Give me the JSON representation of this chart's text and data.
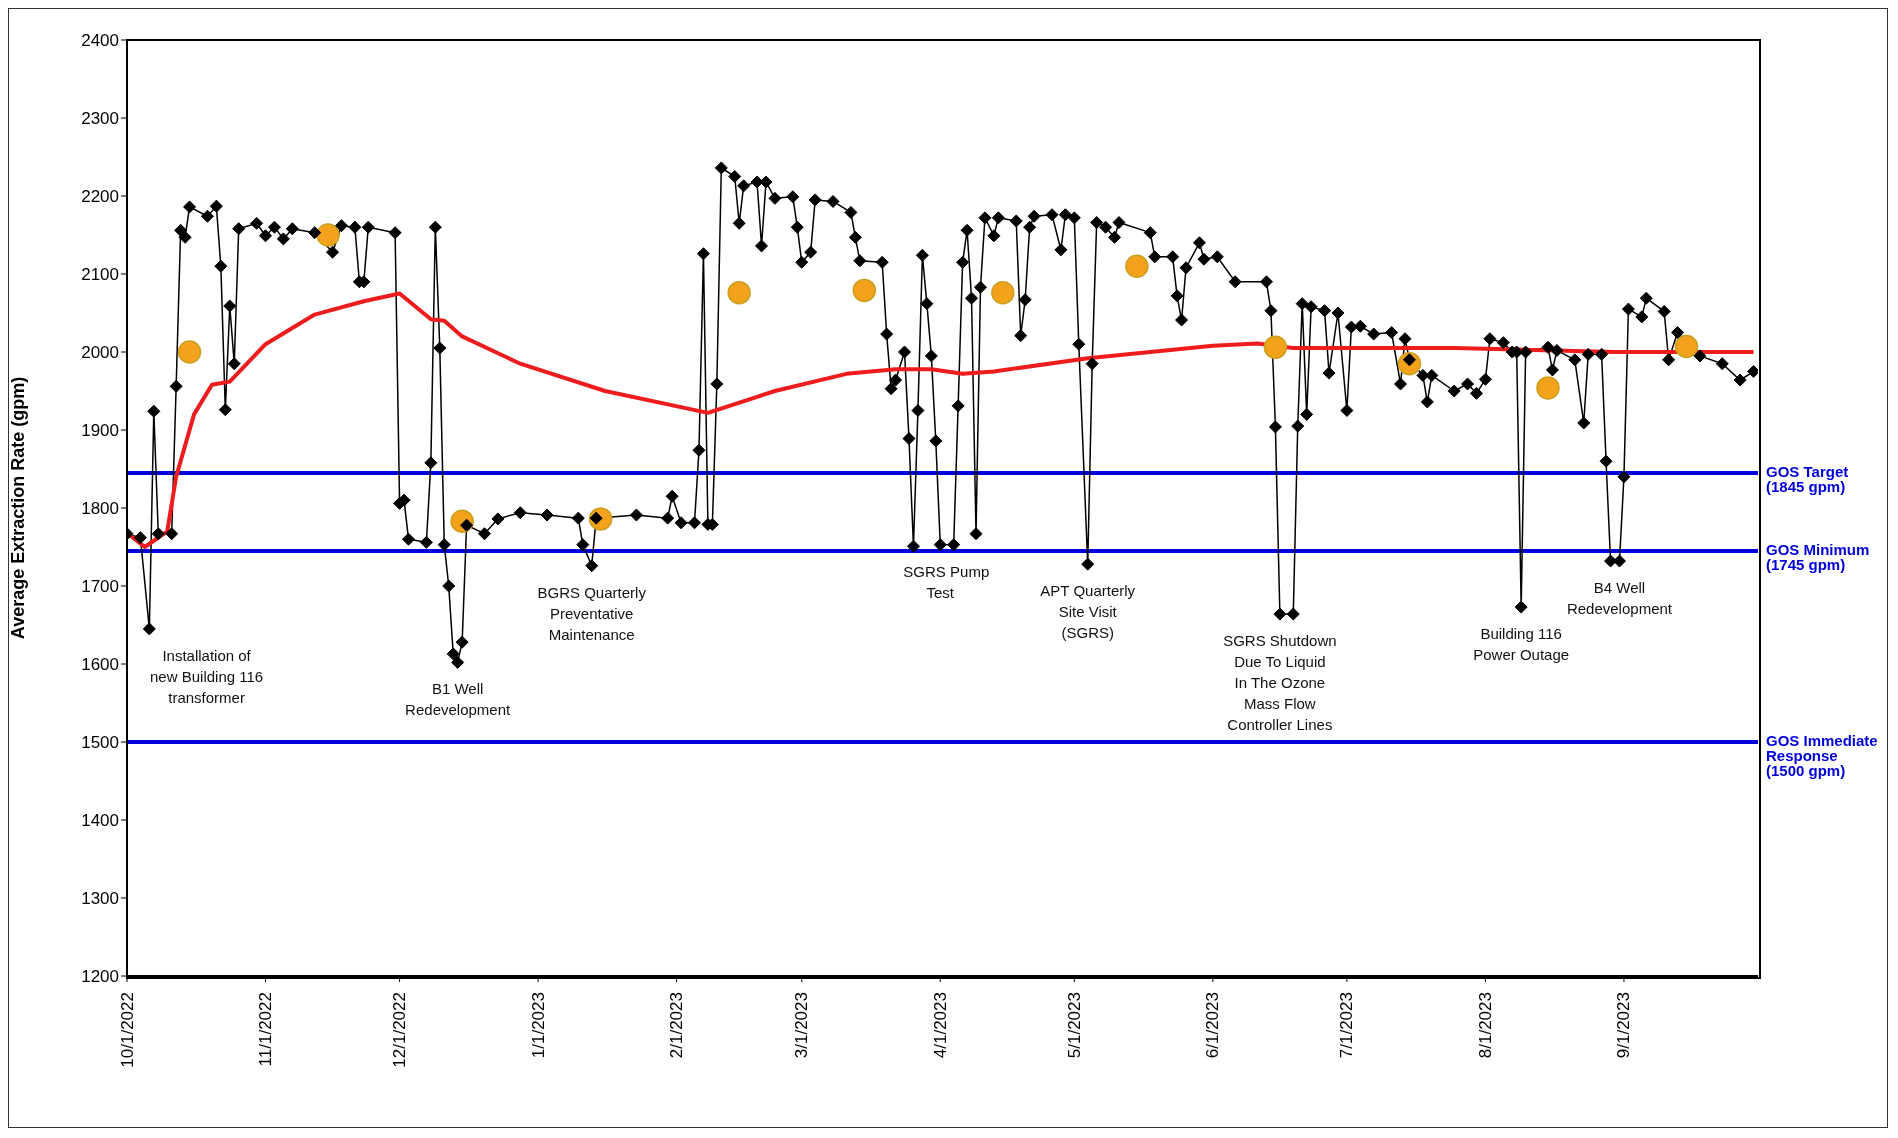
{
  "chart_data": {
    "type": "line",
    "ylabel": "Average Extraction Rate (gpm)",
    "xlim": [
      "2022-10-01",
      "2023-10-01"
    ],
    "xticks": [
      {
        "value": "2022-10-01",
        "label": "10/1/2022"
      },
      {
        "value": "2022-11-01",
        "label": "11/1/2022"
      },
      {
        "value": "2022-12-01",
        "label": "12/1/2022"
      },
      {
        "value": "2023-01-01",
        "label": "1/1/2023"
      },
      {
        "value": "2023-02-01",
        "label": "2/1/2023"
      },
      {
        "value": "2023-03-01",
        "label": "3/1/2023"
      },
      {
        "value": "2023-04-01",
        "label": "4/1/2023"
      },
      {
        "value": "2023-05-01",
        "label": "5/1/2023"
      },
      {
        "value": "2023-06-01",
        "label": "6/1/2023"
      },
      {
        "value": "2023-07-01",
        "label": "7/1/2023"
      },
      {
        "value": "2023-08-01",
        "label": "8/1/2023"
      },
      {
        "value": "2023-09-01",
        "label": "9/1/2023"
      }
    ],
    "ylim": [
      1200,
      2400
    ],
    "yticks": [
      1200,
      1300,
      1400,
      1500,
      1600,
      1700,
      1800,
      1900,
      2000,
      2100,
      2200,
      2300,
      2400
    ],
    "series": [
      {
        "type": "line",
        "color": "#000000",
        "marker": "diamond",
        "x": [
          "2022-10-01",
          "2022-10-04",
          "2022-10-06",
          "2022-10-07",
          "2022-10-08",
          "2022-10-11",
          "2022-10-12",
          "2022-10-13",
          "2022-10-14",
          "2022-10-15",
          "2022-10-19",
          "2022-10-21",
          "2022-10-22",
          "2022-10-23",
          "2022-10-24",
          "2022-10-25",
          "2022-10-26",
          "2022-10-30",
          "2022-11-01",
          "2022-11-03",
          "2022-11-05",
          "2022-11-07",
          "2022-11-12",
          "2022-11-16",
          "2022-11-18",
          "2022-11-21",
          "2022-11-22",
          "2022-11-23",
          "2022-11-24",
          "2022-11-30",
          "2022-12-01",
          "2022-12-02",
          "2022-12-03",
          "2022-12-07",
          "2022-12-08",
          "2022-12-09",
          "2022-12-10",
          "2022-12-11",
          "2022-12-12",
          "2022-12-13",
          "2022-12-14",
          "2022-12-15",
          "2022-12-16",
          "2022-12-20",
          "2022-12-23",
          "2022-12-28",
          "2023-01-03",
          "2023-01-10",
          "2023-01-11",
          "2023-01-13",
          "2023-01-14",
          "2023-01-23",
          "2023-01-30",
          "2023-01-31",
          "2023-02-02",
          "2023-02-05",
          "2023-02-06",
          "2023-02-07",
          "2023-02-08",
          "2023-02-09",
          "2023-02-10",
          "2023-02-11",
          "2023-02-14",
          "2023-02-15",
          "2023-02-16",
          "2023-02-19",
          "2023-02-20",
          "2023-02-21",
          "2023-02-23",
          "2023-02-27",
          "2023-02-28",
          "2023-03-01",
          "2023-03-03",
          "2023-03-04",
          "2023-03-08",
          "2023-03-12",
          "2023-03-13",
          "2023-03-14",
          "2023-03-19",
          "2023-03-20",
          "2023-03-21",
          "2023-03-22",
          "2023-03-24",
          "2023-03-25",
          "2023-03-26",
          "2023-03-27",
          "2023-03-28",
          "2023-03-29",
          "2023-03-30",
          "2023-03-31",
          "2023-04-01",
          "2023-04-04",
          "2023-04-05",
          "2023-04-06",
          "2023-04-07",
          "2023-04-08",
          "2023-04-09",
          "2023-04-10",
          "2023-04-11",
          "2023-04-13",
          "2023-04-14",
          "2023-04-18",
          "2023-04-19",
          "2023-04-20",
          "2023-04-21",
          "2023-04-22",
          "2023-04-26",
          "2023-04-28",
          "2023-04-29",
          "2023-05-01",
          "2023-05-02",
          "2023-05-04",
          "2023-05-05",
          "2023-05-06",
          "2023-05-08",
          "2023-05-10",
          "2023-05-11",
          "2023-05-18",
          "2023-05-19",
          "2023-05-23",
          "2023-05-24",
          "2023-05-25",
          "2023-05-26",
          "2023-05-29",
          "2023-05-30",
          "2023-06-02",
          "2023-06-06",
          "2023-06-13",
          "2023-06-14",
          "2023-06-15",
          "2023-06-16",
          "2023-06-19",
          "2023-06-20",
          "2023-06-21",
          "2023-06-22",
          "2023-06-23",
          "2023-06-26",
          "2023-06-27",
          "2023-06-29",
          "2023-07-01",
          "2023-07-02",
          "2023-07-04",
          "2023-07-07",
          "2023-07-11",
          "2023-07-13",
          "2023-07-14",
          "2023-07-15",
          "2023-07-18",
          "2023-07-19",
          "2023-07-20",
          "2023-07-25",
          "2023-07-28",
          "2023-07-30",
          "2023-08-01",
          "2023-08-02",
          "2023-08-05",
          "2023-08-07",
          "2023-08-08",
          "2023-08-09",
          "2023-08-10",
          "2023-08-15",
          "2023-08-16",
          "2023-08-17",
          "2023-08-21",
          "2023-08-23",
          "2023-08-24",
          "2023-08-27",
          "2023-08-28",
          "2023-08-29",
          "2023-08-31",
          "2023-09-01",
          "2023-09-02",
          "2023-09-05",
          "2023-09-06",
          "2023-09-10",
          "2023-09-11",
          "2023-09-13",
          "2023-09-18",
          "2023-09-23",
          "2023-09-27",
          "2023-09-30"
        ],
        "values": [
          1767,
          1762,
          1645,
          1924,
          1767,
          1767,
          1956,
          2156,
          2147,
          2186,
          2174,
          2187,
          2110,
          1926,
          2059,
          1985,
          2158,
          2165,
          2149,
          2160,
          2145,
          2158,
          2153,
          2128,
          2162,
          2160,
          2090,
          2090,
          2160,
          2153,
          1806,
          1810,
          1760,
          1756,
          1858,
          2160,
          2005,
          1753,
          1700,
          1613,
          1602,
          1628,
          1778,
          1767,
          1786,
          1794,
          1791,
          1787,
          1753,
          1726,
          1787,
          1791,
          1787,
          1815,
          1781,
          1781,
          1874,
          2126,
          1779,
          1779,
          1959,
          2236,
          2225,
          2165,
          2213,
          2218,
          2136,
          2218,
          2197,
          2199,
          2160,
          2115,
          2128,
          2195,
          2193,
          2179,
          2147,
          2117,
          2115,
          2023,
          1953,
          1964,
          2000,
          1889,
          1751,
          1925,
          2124,
          2062,
          1995,
          1886,
          1753,
          1753,
          1931,
          2115,
          2156,
          2069,
          1767,
          2083,
          2172,
          2149,
          2172,
          2168,
          2021,
          2067,
          2160,
          2174,
          2176,
          2131,
          2176,
          2172,
          2010,
          1728,
          1985,
          2166,
          2160,
          2147,
          2166,
          2153,
          2122,
          2122,
          2072,
          2041,
          2108,
          2140,
          2119,
          2122,
          2090,
          2090,
          2053,
          1904,
          1664,
          1664,
          1905,
          2062,
          1920,
          2058,
          2053,
          1973,
          2050,
          1925,
          2032,
          2033,
          2023,
          2025,
          1959,
          2017,
          1990,
          1970,
          1936,
          1970,
          1950,
          1959,
          1947,
          1965,
          2017,
          2012,
          2000,
          2000,
          1673,
          2000,
          2006,
          1977,
          2002,
          1990,
          1909,
          1997,
          1997,
          1860,
          1732,
          1732,
          1840,
          2055,
          2045,
          2069,
          2052,
          1990,
          2025,
          1995,
          1985,
          1964,
          1975
        ]
      },
      {
        "type": "line",
        "color": "#ee1c1c",
        "marker": "none",
        "x": [
          "2022-10-01",
          "2022-10-05",
          "2022-10-10",
          "2022-10-12",
          "2022-10-16",
          "2022-10-20",
          "2022-10-24",
          "2022-11-01",
          "2022-11-12",
          "2022-11-23",
          "2022-12-01",
          "2022-12-08",
          "2022-12-11",
          "2022-12-15",
          "2022-12-28",
          "2023-01-16",
          "2023-02-08",
          "2023-02-23",
          "2023-03-11",
          "2023-03-22",
          "2023-03-30",
          "2023-04-06",
          "2023-04-13",
          "2023-05-04",
          "2023-06-01",
          "2023-06-11",
          "2023-06-19",
          "2023-07-25",
          "2023-08-30",
          "2023-09-30"
        ],
        "values": [
          1768,
          1750,
          1770,
          1840,
          1920,
          1958,
          1962,
          2010,
          2048,
          2065,
          2075,
          2042,
          2040,
          2020,
          1985,
          1950,
          1922,
          1950,
          1972,
          1978,
          1978,
          1972,
          1975,
          1992,
          2008,
          2011,
          2005,
          2005,
          2000,
          2000
        ]
      },
      {
        "type": "scatter",
        "color": "#f4a21b",
        "marker": "circle",
        "x": [
          "2022-10-15",
          "2022-11-15",
          "2022-12-15",
          "2023-01-15",
          "2023-02-15",
          "2023-03-15",
          "2023-04-15",
          "2023-05-15",
          "2023-06-15",
          "2023-07-15",
          "2023-08-15",
          "2023-09-15"
        ],
        "values": [
          2000,
          2150,
          1783,
          1786,
          2076,
          2079,
          2076,
          2110,
          2006,
          1985,
          1954,
          2007
        ]
      }
    ],
    "ref_lines": [
      {
        "axis": "y",
        "value": 1845,
        "label": "GOS Target (1845 gpm)",
        "color": "#0000dd"
      },
      {
        "axis": "y",
        "value": 1745,
        "label": "GOS Minimum (1745 gpm)",
        "color": "#0000dd"
      },
      {
        "axis": "y",
        "value": 1500,
        "label": "GOS Immediate Response (1500 gpm)",
        "color": "#0000dd"
      }
    ],
    "annotations": [
      {
        "text": "Installation of\nnew Building 116\ntransformer",
        "x": "2022-10-06",
        "y": 1645
      },
      {
        "text": "B1 Well\nRedevelopment",
        "x": "2022-12-14",
        "y": 1602
      },
      {
        "text": "BGRS Quarterly\nPreventative\nMaintenance",
        "x": "2023-01-13",
        "y": 1726
      },
      {
        "text": "SGRS Pump\nTest",
        "x": "2023-04-01",
        "y": 1753
      },
      {
        "text": "APT Quarterly\nSite Visit\n(SGRS)",
        "x": "2023-05-04",
        "y": 1728
      },
      {
        "text": "SGRS Shutdown\nDue To Liquid\nIn The Ozone\nMass Flow\nController Lines",
        "x": "2023-06-16",
        "y": 1664
      },
      {
        "text": "Building 116\nPower Outage",
        "x": "2023-08-09",
        "y": 1673
      },
      {
        "text": "B4 Well\nRedevelopment",
        "x": "2023-08-31",
        "y": 1732
      }
    ]
  }
}
